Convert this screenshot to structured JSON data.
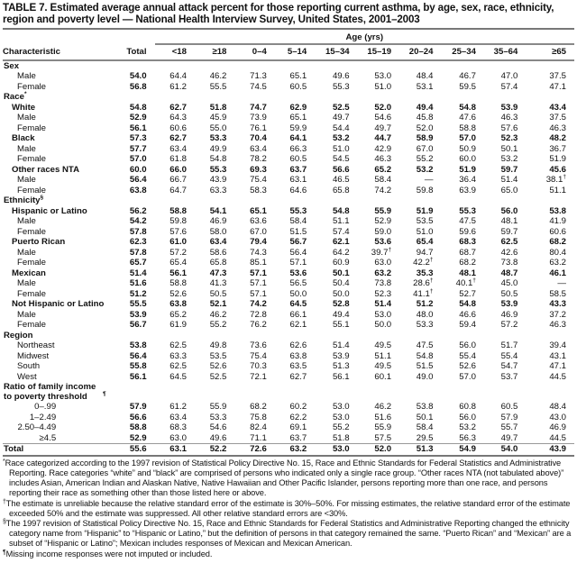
{
  "title": "TABLE 7. Estimated average annual attack percent for those reporting current asthma, by age, sex, race, ethnicity, region and poverty level — National Health Interview Survey, United States, 2001–2003",
  "header": {
    "age_group_label": "Age (yrs)",
    "columns": [
      "Characteristic",
      "Total",
      "<18",
      "≥18",
      "0–4",
      "5–14",
      "15–34",
      "15–19",
      "20–24",
      "25–34",
      "35–64",
      "≥65"
    ]
  },
  "rows": [
    {
      "label": "Sex",
      "sup": "",
      "type": "group",
      "level": 0,
      "values": []
    },
    {
      "label": "Male",
      "type": "sub",
      "level": 2,
      "values": [
        "54.0",
        "64.4",
        "46.2",
        "71.3",
        "65.1",
        "49.6",
        "53.0",
        "48.4",
        "46.7",
        "47.0",
        "37.5"
      ]
    },
    {
      "label": "Female",
      "type": "sub",
      "level": 2,
      "values": [
        "56.8",
        "61.2",
        "55.5",
        "74.5",
        "60.5",
        "55.3",
        "51.0",
        "53.1",
        "59.5",
        "57.4",
        "47.1"
      ]
    },
    {
      "label": "Race",
      "sup": "*",
      "type": "group",
      "level": 0,
      "values": []
    },
    {
      "label": "White",
      "type": "bold",
      "level": 1,
      "values": [
        "54.8",
        "62.7",
        "51.8",
        "74.7",
        "62.9",
        "52.5",
        "52.0",
        "49.4",
        "54.8",
        "53.9",
        "43.4"
      ]
    },
    {
      "label": "Male",
      "type": "sub",
      "level": 2,
      "values": [
        "52.9",
        "64.3",
        "45.9",
        "73.9",
        "65.1",
        "49.7",
        "54.6",
        "45.8",
        "47.6",
        "46.3",
        "37.5"
      ]
    },
    {
      "label": "Female",
      "type": "sub",
      "level": 2,
      "values": [
        "56.1",
        "60.6",
        "55.0",
        "76.1",
        "59.9",
        "54.4",
        "49.7",
        "52.0",
        "58.8",
        "57.6",
        "46.3"
      ]
    },
    {
      "label": "Black",
      "type": "bold",
      "level": 1,
      "values": [
        "57.3",
        "62.7",
        "53.3",
        "70.4",
        "64.1",
        "53.2",
        "44.7",
        "58.9",
        "57.0",
        "52.3",
        "48.2"
      ]
    },
    {
      "label": "Male",
      "type": "sub",
      "level": 2,
      "values": [
        "57.7",
        "63.4",
        "49.9",
        "63.4",
        "66.3",
        "51.0",
        "42.9",
        "67.0",
        "50.9",
        "50.1",
        "36.7"
      ]
    },
    {
      "label": "Female",
      "type": "sub",
      "level": 2,
      "values": [
        "57.0",
        "61.8",
        "54.8",
        "78.2",
        "60.5",
        "54.5",
        "46.3",
        "55.2",
        "60.0",
        "53.2",
        "51.9"
      ]
    },
    {
      "label": "Other races NTA",
      "type": "bold",
      "level": 1,
      "values": [
        "60.0",
        "66.0",
        "55.3",
        "69.3",
        "63.7",
        "56.6",
        "65.2",
        "53.2",
        "51.9",
        "59.7",
        "45.6"
      ]
    },
    {
      "label": "Male",
      "type": "sub",
      "level": 2,
      "values": [
        "56.4",
        "66.7",
        "43.9",
        "75.4",
        "63.1",
        "46.5",
        "58.4",
        "—",
        "36.4",
        "51.4",
        "38.1†"
      ]
    },
    {
      "label": "Female",
      "type": "sub",
      "level": 2,
      "values": [
        "63.8",
        "64.7",
        "63.3",
        "58.3",
        "64.6",
        "65.8",
        "74.2",
        "59.8",
        "63.9",
        "65.0",
        "51.1"
      ]
    },
    {
      "label": "Ethnicity",
      "sup": "§",
      "type": "group",
      "level": 0,
      "values": []
    },
    {
      "label": "Hispanic or Latino",
      "type": "bold",
      "level": 1,
      "values": [
        "56.2",
        "58.8",
        "54.1",
        "65.1",
        "55.3",
        "54.8",
        "55.9",
        "51.9",
        "55.3",
        "56.0",
        "53.8"
      ]
    },
    {
      "label": "Male",
      "type": "sub",
      "level": 2,
      "values": [
        "54.2",
        "59.8",
        "46.9",
        "63.6",
        "58.4",
        "51.1",
        "52.9",
        "53.5",
        "47.5",
        "48.1",
        "41.9"
      ]
    },
    {
      "label": "Female",
      "type": "sub",
      "level": 2,
      "values": [
        "57.8",
        "57.6",
        "58.0",
        "67.0",
        "51.5",
        "57.4",
        "59.0",
        "51.0",
        "59.6",
        "59.7",
        "60.6"
      ]
    },
    {
      "label": "Puerto Rican",
      "type": "bold",
      "level": 1,
      "values": [
        "62.3",
        "61.0",
        "63.4",
        "79.4",
        "56.7",
        "62.1",
        "53.6",
        "65.4",
        "68.3",
        "62.5",
        "68.2"
      ]
    },
    {
      "label": "Male",
      "type": "sub",
      "level": 2,
      "values": [
        "57.8",
        "57.2",
        "58.6",
        "74.3",
        "56.4",
        "64.2",
        "39.7†",
        "94.7",
        "68.7",
        "42.6",
        "80.4"
      ]
    },
    {
      "label": "Female",
      "type": "sub",
      "level": 2,
      "values": [
        "65.7",
        "65.4",
        "65.8",
        "85.1",
        "57.1",
        "60.9",
        "63.0",
        "42.2†",
        "68.2",
        "73.8",
        "63.2"
      ]
    },
    {
      "label": "Mexican",
      "type": "bold",
      "level": 1,
      "values": [
        "51.4",
        "56.1",
        "47.3",
        "57.1",
        "53.6",
        "50.1",
        "63.2",
        "35.3",
        "48.1",
        "48.7",
        "46.1"
      ]
    },
    {
      "label": "Male",
      "type": "sub",
      "level": 2,
      "values": [
        "51.6",
        "58.8",
        "41.3",
        "57.1",
        "56.5",
        "50.4",
        "73.8",
        "28.6†",
        "40.1†",
        "45.0",
        "—"
      ]
    },
    {
      "label": "Female",
      "type": "sub",
      "level": 2,
      "values": [
        "51.2",
        "52.6",
        "50.5",
        "57.1",
        "50.0",
        "50.0",
        "52.3",
        "41.1†",
        "52.7",
        "50.5",
        "58.5"
      ]
    },
    {
      "label": "Not Hispanic or Latino",
      "type": "bold",
      "level": 1,
      "values": [
        "55.5",
        "63.8",
        "52.1",
        "74.2",
        "64.5",
        "52.8",
        "51.4",
        "51.2",
        "54.8",
        "53.9",
        "43.3"
      ]
    },
    {
      "label": "Male",
      "type": "sub",
      "level": 2,
      "values": [
        "53.9",
        "65.2",
        "46.2",
        "72.8",
        "66.1",
        "49.4",
        "53.0",
        "48.0",
        "46.6",
        "46.9",
        "37.2"
      ]
    },
    {
      "label": "Female",
      "type": "sub",
      "level": 2,
      "values": [
        "56.7",
        "61.9",
        "55.2",
        "76.2",
        "62.1",
        "55.1",
        "50.0",
        "53.3",
        "59.4",
        "57.2",
        "46.3"
      ]
    },
    {
      "label": "Region",
      "type": "group",
      "level": 0,
      "values": []
    },
    {
      "label": "Northeast",
      "type": "sub",
      "level": 2,
      "values": [
        "53.8",
        "62.5",
        "49.8",
        "73.6",
        "62.6",
        "51.4",
        "49.5",
        "47.5",
        "56.0",
        "51.7",
        "39.4"
      ]
    },
    {
      "label": "Midwest",
      "type": "sub",
      "level": 2,
      "values": [
        "56.4",
        "63.3",
        "53.5",
        "75.4",
        "63.8",
        "53.9",
        "51.1",
        "54.8",
        "55.4",
        "55.4",
        "43.1"
      ]
    },
    {
      "label": "South",
      "type": "sub",
      "level": 2,
      "values": [
        "55.8",
        "62.5",
        "52.6",
        "70.3",
        "63.5",
        "51.3",
        "49.5",
        "51.5",
        "52.6",
        "54.7",
        "47.1"
      ]
    },
    {
      "label": "West",
      "type": "sub",
      "level": 2,
      "values": [
        "56.1",
        "64.5",
        "52.5",
        "72.1",
        "62.7",
        "56.1",
        "60.1",
        "49.0",
        "57.0",
        "53.7",
        "44.5"
      ]
    },
    {
      "label": "Ratio of family income to poverty threshold",
      "sup": "¶",
      "type": "ratio",
      "level": 0,
      "values": []
    },
    {
      "label": "0–.99",
      "type": "sub",
      "level": "r",
      "values": [
        "57.9",
        "61.2",
        "55.9",
        "68.2",
        "60.2",
        "53.0",
        "46.2",
        "53.8",
        "60.8",
        "60.5",
        "48.4"
      ]
    },
    {
      "label": "1–2.49",
      "type": "sub",
      "level": "r",
      "values": [
        "56.6",
        "63.4",
        "53.3",
        "75.8",
        "62.2",
        "53.0",
        "51.6",
        "50.1",
        "56.0",
        "57.9",
        "43.0"
      ]
    },
    {
      "label": "2.50–4.49",
      "type": "sub",
      "level": "r",
      "values": [
        "58.8",
        "68.3",
        "54.6",
        "82.4",
        "69.1",
        "55.2",
        "55.9",
        "58.4",
        "53.2",
        "55.7",
        "46.9"
      ]
    },
    {
      "label": "≥4.5",
      "type": "sub",
      "level": "r",
      "values": [
        "52.9",
        "63.0",
        "49.6",
        "71.1",
        "63.7",
        "51.8",
        "57.5",
        "29.5",
        "56.3",
        "49.7",
        "44.5"
      ]
    },
    {
      "label": "Total",
      "type": "total",
      "level": 0,
      "values": [
        "55.6",
        "63.1",
        "52.2",
        "72.6",
        "63.2",
        "53.0",
        "52.0",
        "51.3",
        "54.9",
        "54.0",
        "43.9"
      ]
    }
  ],
  "footnotes": [
    {
      "mark": "*",
      "text": "Race categorized according to the 1997 revision of Statistical Policy Directive No. 15, Race and Ethnic Standards for Federal Statistics and Administrative Reporting. Race categories “white” and “black” are comprised of persons who indicated only a single race group. “Other races NTA (not tabulated above)” includes Asian, American Indian and Alaskan Native, Native Hawaiian and Other Pacific Islander, persons reporting more than one race, and persons reporting their race as something other than those listed here or above."
    },
    {
      "mark": "†",
      "text": "The estimate is unreliable because the relative standard error of the estimate is 30%–50%. For missing estimates, the relative standard error of the estimate exceeded 50% and the estimate was suppressed. All other relative standard errors are <30%."
    },
    {
      "mark": "§",
      "text": "The 1997 revision of Statistical Policy Directive No. 15, Race and Ethnic Standards for Federal Statistics and Administrative Reporting changed the ethnicity category name from “Hispanic” to “Hispanic or Latino,” but the definition of persons in that category remained the same. “Puerto Rican” and “Mexican” are a subset of “Hispanic or Latino”; Mexican includes responses of Mexican and Mexican American."
    },
    {
      "mark": "¶",
      "text": "Missing income responses were not imputed or included."
    }
  ]
}
